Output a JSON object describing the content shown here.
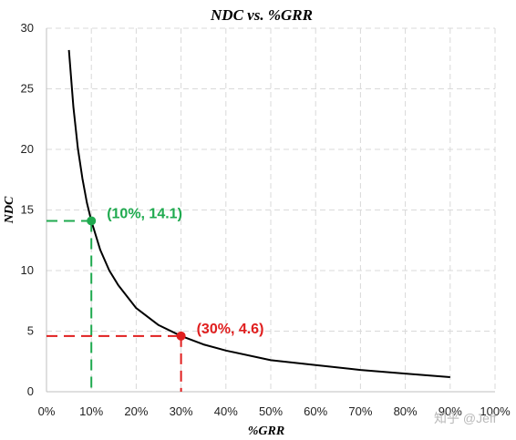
{
  "chart_data": {
    "type": "line",
    "title": "NDC vs. %GRR",
    "xlabel": "%GRR",
    "ylabel": "NDC",
    "xlim": [
      0,
      1
    ],
    "ylim": [
      0,
      30
    ],
    "x_ticks": [
      0,
      0.1,
      0.2,
      0.3,
      0.4,
      0.5,
      0.6,
      0.7,
      0.8,
      0.9,
      1.0
    ],
    "x_tick_labels": [
      "0%",
      "10%",
      "20%",
      "30%",
      "40%",
      "50%",
      "60%",
      "70%",
      "80%",
      "90%",
      "100%"
    ],
    "y_ticks": [
      0,
      5,
      10,
      15,
      20,
      25,
      30
    ],
    "y_tick_labels": [
      "0",
      "5",
      "10",
      "15",
      "20",
      "25",
      "30"
    ],
    "grid": true,
    "series": [
      {
        "color": "#000000",
        "x": [
          0.05,
          0.06,
          0.07,
          0.08,
          0.09,
          0.1,
          0.12,
          0.14,
          0.16,
          0.2,
          0.25,
          0.3,
          0.35,
          0.4,
          0.5,
          0.6,
          0.7,
          0.8,
          0.9
        ],
        "y": [
          28.2,
          23.5,
          20.1,
          17.6,
          15.6,
          14.1,
          11.7,
          10.0,
          8.8,
          6.9,
          5.5,
          4.6,
          3.9,
          3.4,
          2.6,
          2.2,
          1.8,
          1.5,
          1.2
        ]
      }
    ],
    "annotations": [
      {
        "x": 0.1,
        "y": 14.1,
        "label": "(10%, 14.1)",
        "color": "#1faa4f"
      },
      {
        "x": 0.3,
        "y": 4.6,
        "label": "(30%, 4.6)",
        "color": "#e01e1e"
      }
    ]
  },
  "watermark": "知乎 @Jeff"
}
